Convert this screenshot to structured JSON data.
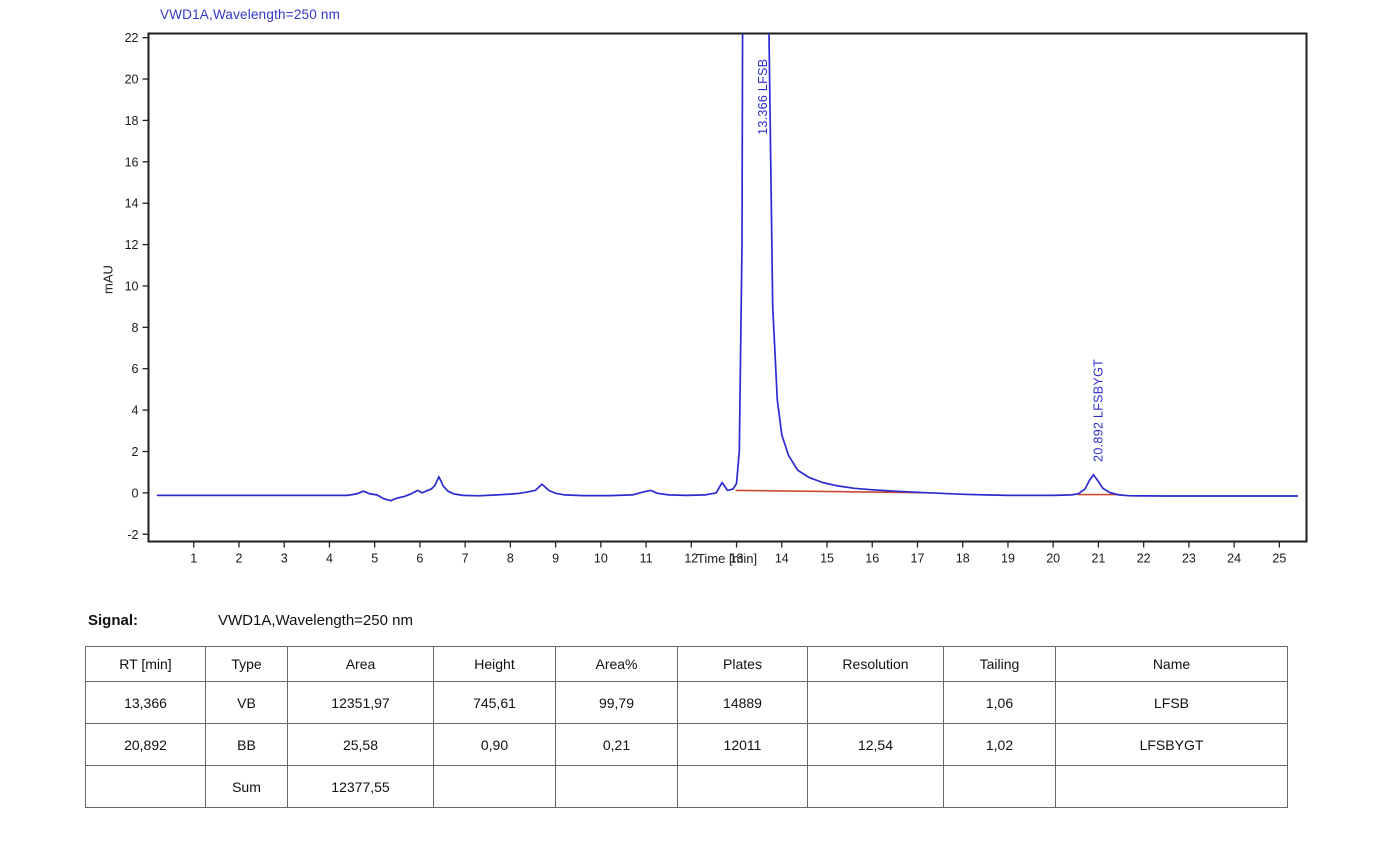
{
  "chart_data": {
    "type": "line",
    "title": "VWD1A,Wavelength=250 nm",
    "xlabel": "Time [min]",
    "ylabel": "mAU",
    "xlim": [
      0,
      25.6
    ],
    "ylim": [
      -2.35,
      22.2
    ],
    "x_ticks": [
      1,
      2,
      3,
      4,
      5,
      6,
      7,
      8,
      9,
      10,
      11,
      12,
      13,
      14,
      15,
      16,
      17,
      18,
      19,
      20,
      21,
      22,
      23,
      24,
      25
    ],
    "y_ticks": [
      -2,
      0,
      2,
      4,
      6,
      8,
      10,
      12,
      14,
      16,
      18,
      20,
      22
    ],
    "grid": false,
    "legend": "none",
    "trace_color": "#2b2bd0",
    "baseline_color": "#cc4a33",
    "peaks": [
      {
        "rt": 13.366,
        "height_mau": 745.61,
        "label": "13.366 LFSB",
        "label_base_mau": 17.3,
        "label_dx": 14
      },
      {
        "rt": 20.892,
        "height_mau": 0.9,
        "label": "20.892 LFSBYGT",
        "label_base_mau": 1.5,
        "label_dx": 9
      }
    ],
    "integration_baselines": [
      {
        "x1": 12.98,
        "y1": 0.12,
        "x2": 17.3,
        "y2": 0.0
      },
      {
        "x1": 20.55,
        "y1": -0.08,
        "x2": 21.45,
        "y2": -0.08
      }
    ],
    "trace_points": [
      [
        0.2,
        -0.12
      ],
      [
        1,
        -0.12
      ],
      [
        2,
        -0.12
      ],
      [
        3,
        -0.12
      ],
      [
        4,
        -0.12
      ],
      [
        4.4,
        -0.12
      ],
      [
        4.6,
        -0.05
      ],
      [
        4.75,
        0.08
      ],
      [
        4.9,
        -0.05
      ],
      [
        5.05,
        -0.1
      ],
      [
        5.2,
        -0.28
      ],
      [
        5.35,
        -0.38
      ],
      [
        5.5,
        -0.25
      ],
      [
        5.65,
        -0.18
      ],
      [
        5.8,
        -0.05
      ],
      [
        5.95,
        0.12
      ],
      [
        6.05,
        0.0
      ],
      [
        6.15,
        0.1
      ],
      [
        6.25,
        0.18
      ],
      [
        6.33,
        0.35
      ],
      [
        6.42,
        0.78
      ],
      [
        6.52,
        0.32
      ],
      [
        6.62,
        0.08
      ],
      [
        6.75,
        -0.05
      ],
      [
        6.95,
        -0.12
      ],
      [
        7.3,
        -0.14
      ],
      [
        7.7,
        -0.1
      ],
      [
        8.0,
        -0.06
      ],
      [
        8.2,
        -0.02
      ],
      [
        8.4,
        0.05
      ],
      [
        8.55,
        0.12
      ],
      [
        8.7,
        0.42
      ],
      [
        8.85,
        0.12
      ],
      [
        9.0,
        -0.02
      ],
      [
        9.2,
        -0.1
      ],
      [
        9.6,
        -0.13
      ],
      [
        10.2,
        -0.13
      ],
      [
        10.7,
        -0.1
      ],
      [
        10.95,
        0.05
      ],
      [
        11.1,
        0.12
      ],
      [
        11.25,
        -0.02
      ],
      [
        11.5,
        -0.1
      ],
      [
        11.9,
        -0.12
      ],
      [
        12.3,
        -0.1
      ],
      [
        12.55,
        0.0
      ],
      [
        12.68,
        0.5
      ],
      [
        12.8,
        0.12
      ],
      [
        12.92,
        0.18
      ],
      [
        13.0,
        0.45
      ],
      [
        13.06,
        2
      ],
      [
        13.12,
        12
      ],
      [
        13.18,
        60
      ],
      [
        13.25,
        300
      ],
      [
        13.366,
        745.61
      ],
      [
        13.5,
        300
      ],
      [
        13.6,
        80
      ],
      [
        13.7,
        25
      ],
      [
        13.8,
        9
      ],
      [
        13.9,
        4.5
      ],
      [
        14.0,
        2.8
      ],
      [
        14.15,
        1.8
      ],
      [
        14.35,
        1.1
      ],
      [
        14.6,
        0.75
      ],
      [
        14.9,
        0.5
      ],
      [
        15.2,
        0.35
      ],
      [
        15.6,
        0.22
      ],
      [
        16.0,
        0.15
      ],
      [
        16.5,
        0.08
      ],
      [
        17.0,
        0.03
      ],
      [
        17.5,
        -0.02
      ],
      [
        18.0,
        -0.07
      ],
      [
        18.5,
        -0.1
      ],
      [
        19.0,
        -0.12
      ],
      [
        19.5,
        -0.12
      ],
      [
        20.0,
        -0.12
      ],
      [
        20.4,
        -0.1
      ],
      [
        20.55,
        -0.05
      ],
      [
        20.7,
        0.18
      ],
      [
        20.8,
        0.6
      ],
      [
        20.892,
        0.88
      ],
      [
        21.0,
        0.55
      ],
      [
        21.1,
        0.22
      ],
      [
        21.25,
        0.02
      ],
      [
        21.45,
        -0.1
      ],
      [
        21.7,
        -0.14
      ],
      [
        22.5,
        -0.15
      ],
      [
        23.5,
        -0.15
      ],
      [
        24.5,
        -0.15
      ],
      [
        25.4,
        -0.15
      ]
    ]
  },
  "signal": {
    "label": "Signal:",
    "value": "VWD1A,Wavelength=250 nm"
  },
  "table": {
    "headers": [
      "RT [min]",
      "Type",
      "Area",
      "Height",
      "Area%",
      "Plates",
      "Resolution",
      "Tailing",
      "Name"
    ],
    "rows": [
      [
        "13,366",
        "VB",
        "12351,97",
        "745,61",
        "99,79",
        "14889",
        "",
        "1,06",
        "LFSB"
      ],
      [
        "20,892",
        "BB",
        "25,58",
        "0,90",
        "0,21",
        "12011",
        "12,54",
        "1,02",
        "LFSBYGT"
      ],
      [
        "",
        "Sum",
        "12377,55",
        "",
        "",
        "",
        "",
        "",
        ""
      ]
    ]
  }
}
